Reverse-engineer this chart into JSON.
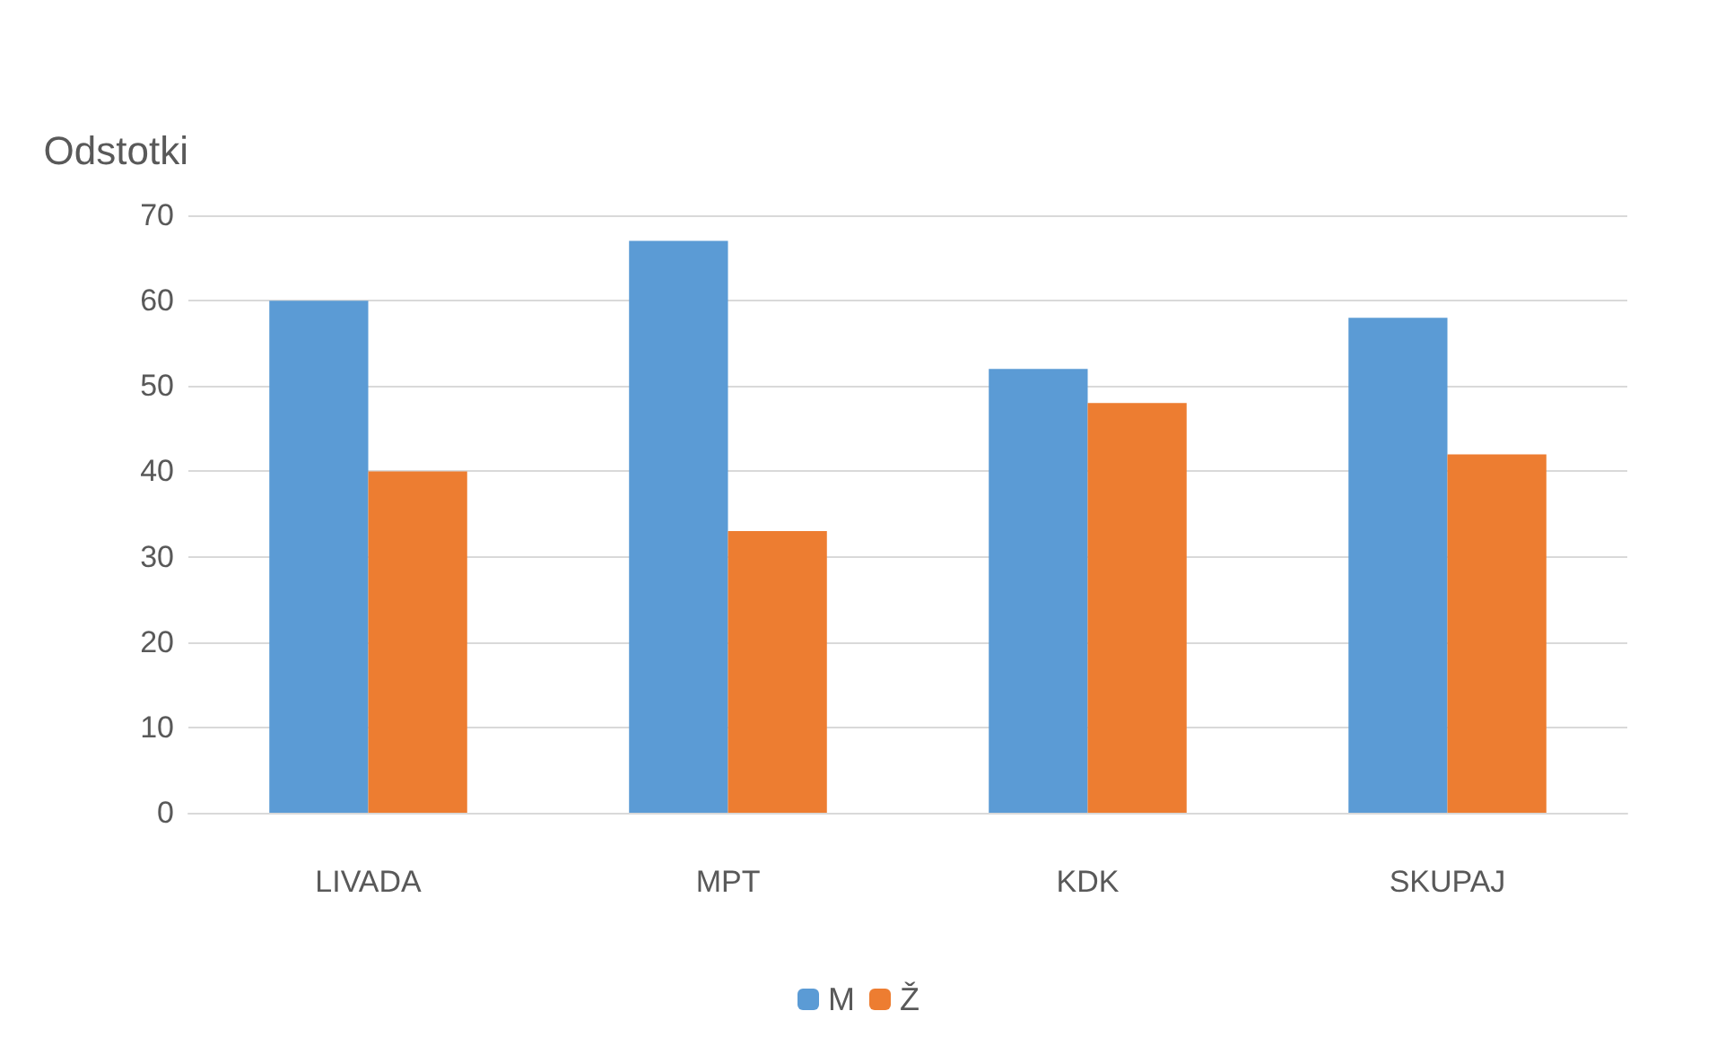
{
  "chart_data": {
    "type": "bar",
    "ylabel": "Odstotki",
    "categories": [
      "LIVADA",
      "MPT",
      "KDK",
      "SKUPAJ"
    ],
    "series": [
      {
        "name": "M",
        "color": "#5b9bd5",
        "values": [
          60,
          67,
          52,
          58
        ]
      },
      {
        "name": "Ž",
        "color": "#ed7d31",
        "values": [
          40,
          33,
          48,
          42
        ]
      }
    ],
    "ylim": [
      0,
      70
    ],
    "yticks": [
      0,
      10,
      20,
      30,
      40,
      50,
      60,
      70
    ],
    "grid": "y",
    "legend": "bottom"
  }
}
